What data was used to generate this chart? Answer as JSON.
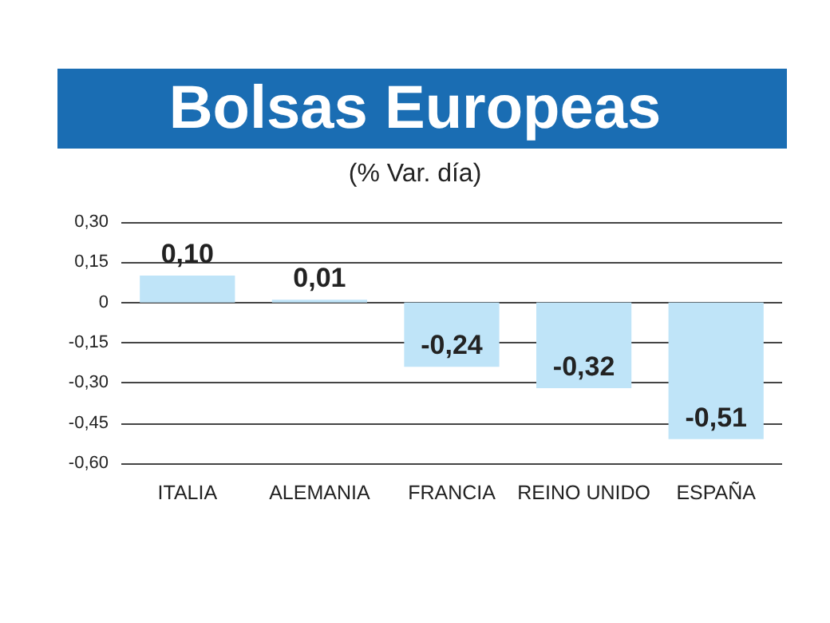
{
  "chart_data": {
    "type": "bar",
    "title": "Bolsas Europeas",
    "subtitle": "(% Var. día)",
    "categories": [
      "ITALIA",
      "ALEMANIA",
      "FRANCIA",
      "REINO UNIDO",
      "ESPAÑA"
    ],
    "values": [
      0.1,
      0.01,
      -0.24,
      -0.32,
      -0.51
    ],
    "color": "#bfe4f8",
    "value_labels": [
      "0,10",
      "0,01",
      "-0,24",
      "-0,32",
      "-0,51"
    ],
    "ylim": [
      -0.6,
      0.3
    ],
    "yticks": [
      {
        "value": 0.3,
        "label": "0,30"
      },
      {
        "value": 0.15,
        "label": "0,15"
      },
      0,
      {
        "value": -0.15,
        "label": "-0,15"
      },
      {
        "value": -0.3,
        "label": "-0,30"
      },
      {
        "value": -0.45,
        "label": "-0,45"
      },
      {
        "value": -0.6,
        "label": "-0,60"
      }
    ],
    "grid": "y"
  }
}
